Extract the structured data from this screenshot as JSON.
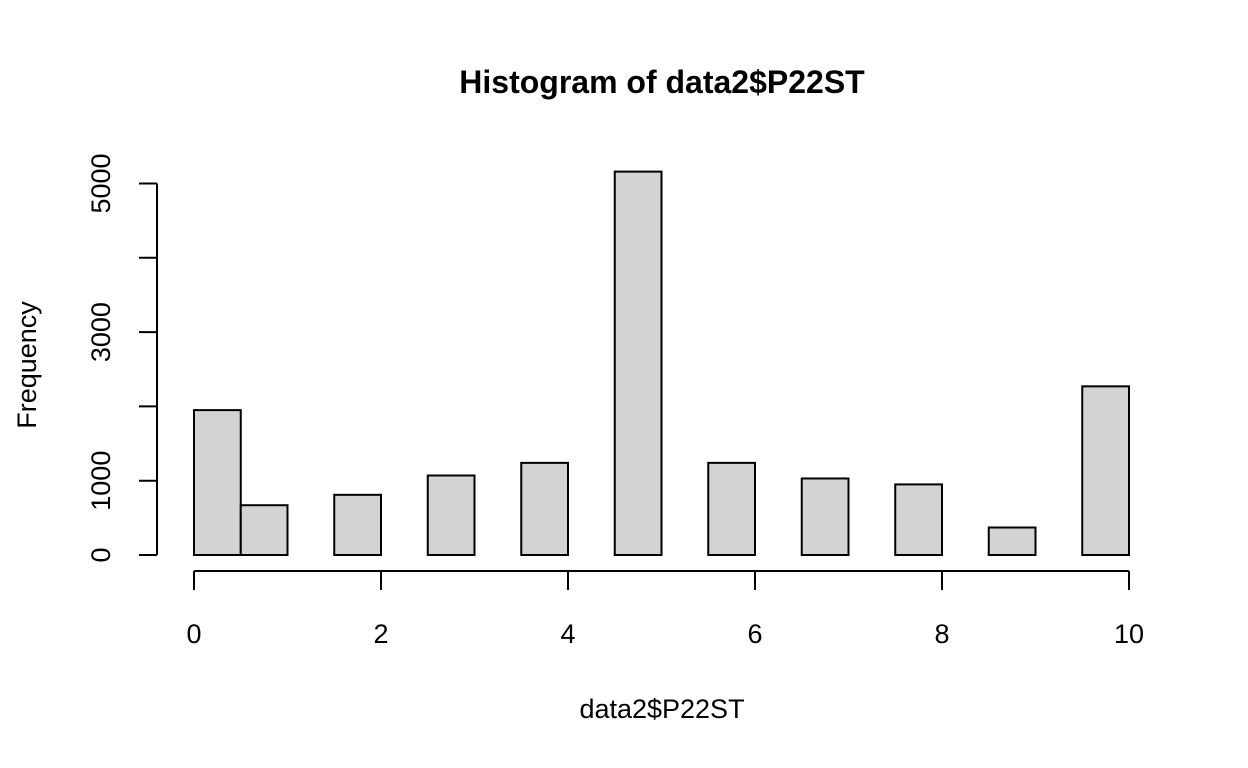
{
  "chart_data": {
    "type": "bar",
    "title": "Histogram of data2$P22ST",
    "xlabel": "data2$P22ST",
    "ylabel": "Frequency",
    "bins": [
      {
        "x0": 0.0,
        "x1": 0.5,
        "value": 1950
      },
      {
        "x0": 0.5,
        "x1": 1.0,
        "value": 670
      },
      {
        "x0": 1.5,
        "x1": 2.0,
        "value": 810
      },
      {
        "x0": 2.5,
        "x1": 3.0,
        "value": 1070
      },
      {
        "x0": 3.5,
        "x1": 4.0,
        "value": 1240
      },
      {
        "x0": 4.5,
        "x1": 5.0,
        "value": 5160
      },
      {
        "x0": 5.5,
        "x1": 6.0,
        "value": 1240
      },
      {
        "x0": 6.5,
        "x1": 7.0,
        "value": 1030
      },
      {
        "x0": 7.5,
        "x1": 8.0,
        "value": 950
      },
      {
        "x0": 8.5,
        "x1": 9.0,
        "value": 370
      },
      {
        "x0": 9.5,
        "x1": 10.0,
        "value": 2270
      }
    ],
    "xlim": [
      0,
      10
    ],
    "ylim": [
      0,
      5160
    ],
    "x_ticks": [
      0,
      2,
      4,
      6,
      8,
      10
    ],
    "x_tick_labels": [
      "0",
      "2",
      "4",
      "6",
      "8",
      "10"
    ],
    "y_ticks": [
      0,
      1000,
      2000,
      3000,
      4000,
      5000
    ],
    "y_tick_labels": [
      "0",
      "1000",
      "",
      "3000",
      "",
      "5000"
    ],
    "grid": false,
    "colors": {
      "bar_fill": "#d3d3d3",
      "bar_stroke": "#000000"
    }
  }
}
